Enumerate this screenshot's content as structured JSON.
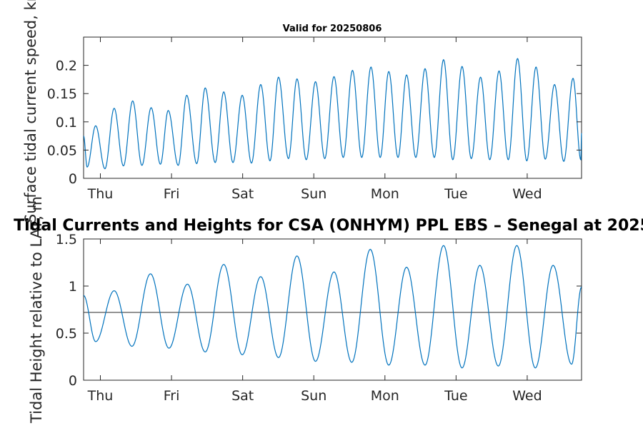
{
  "figure_title": "Tidal Currents and Heights for CSA (ONHYM) PPL EBS  – Senegal at 2025",
  "chart_data": [
    {
      "type": "line",
      "title": "Valid for 20250806",
      "xlabel": "",
      "ylabel": "Surface tidal current speed, kn",
      "x_ticks": [
        "Thu",
        "Fri",
        "Sat",
        "Sun",
        "Mon",
        "Tue",
        "Wed"
      ],
      "x_range_days": [
        0,
        7
      ],
      "ylim": [
        0,
        0.25
      ],
      "y_ticks": [
        "0",
        "0.05",
        "0.1",
        "0.15",
        "0.2"
      ],
      "series_color": "#0072BD",
      "peaks": [
        {
          "day": 0.17,
          "value": 0.093
        },
        {
          "day": 0.43,
          "value": 0.124
        },
        {
          "day": 0.69,
          "value": 0.137
        },
        {
          "day": 0.95,
          "value": 0.125
        },
        {
          "day": 1.19,
          "value": 0.12
        },
        {
          "day": 1.45,
          "value": 0.147
        },
        {
          "day": 1.71,
          "value": 0.16
        },
        {
          "day": 1.97,
          "value": 0.153
        },
        {
          "day": 2.23,
          "value": 0.147
        },
        {
          "day": 2.49,
          "value": 0.166
        },
        {
          "day": 2.74,
          "value": 0.179
        },
        {
          "day": 3.0,
          "value": 0.176
        },
        {
          "day": 3.26,
          "value": 0.171
        },
        {
          "day": 3.52,
          "value": 0.18
        },
        {
          "day": 3.78,
          "value": 0.191
        },
        {
          "day": 4.04,
          "value": 0.197
        },
        {
          "day": 4.29,
          "value": 0.189
        },
        {
          "day": 4.54,
          "value": 0.183
        },
        {
          "day": 4.8,
          "value": 0.194
        },
        {
          "day": 5.06,
          "value": 0.21
        },
        {
          "day": 5.32,
          "value": 0.198
        },
        {
          "day": 5.58,
          "value": 0.179
        },
        {
          "day": 5.84,
          "value": 0.19
        },
        {
          "day": 6.1,
          "value": 0.212
        },
        {
          "day": 6.36,
          "value": 0.197
        },
        {
          "day": 6.62,
          "value": 0.166
        },
        {
          "day": 6.88,
          "value": 0.177
        }
      ],
      "troughs": [
        {
          "day": 0.05,
          "value": 0.02
        },
        {
          "day": 0.3,
          "value": 0.017
        },
        {
          "day": 0.56,
          "value": 0.022
        },
        {
          "day": 0.82,
          "value": 0.023
        },
        {
          "day": 1.08,
          "value": 0.025
        },
        {
          "day": 1.33,
          "value": 0.023
        },
        {
          "day": 1.59,
          "value": 0.026
        },
        {
          "day": 1.85,
          "value": 0.028
        },
        {
          "day": 2.1,
          "value": 0.028
        },
        {
          "day": 2.36,
          "value": 0.027
        },
        {
          "day": 2.62,
          "value": 0.031
        },
        {
          "day": 2.88,
          "value": 0.035
        },
        {
          "day": 3.13,
          "value": 0.033
        },
        {
          "day": 3.39,
          "value": 0.035
        },
        {
          "day": 3.65,
          "value": 0.037
        },
        {
          "day": 3.91,
          "value": 0.037
        },
        {
          "day": 4.17,
          "value": 0.037
        },
        {
          "day": 4.42,
          "value": 0.037
        },
        {
          "day": 4.67,
          "value": 0.037
        },
        {
          "day": 4.93,
          "value": 0.037
        },
        {
          "day": 5.19,
          "value": 0.033
        },
        {
          "day": 5.45,
          "value": 0.035
        },
        {
          "day": 5.71,
          "value": 0.033
        },
        {
          "day": 5.97,
          "value": 0.033
        },
        {
          "day": 6.23,
          "value": 0.031
        },
        {
          "day": 6.49,
          "value": 0.034
        },
        {
          "day": 6.75,
          "value": 0.03
        },
        {
          "day": 6.99,
          "value": 0.033
        }
      ],
      "start_value": 0.075,
      "end_value": 0.08
    },
    {
      "type": "line",
      "title": "",
      "xlabel": "",
      "ylabel": "Tidal Height relative to LAT, m",
      "x_ticks": [
        "Thu",
        "Fri",
        "Sat",
        "Sun",
        "Mon",
        "Tue",
        "Wed"
      ],
      "x_range_days": [
        0,
        7
      ],
      "ylim": [
        0,
        1.5
      ],
      "y_ticks": [
        "0",
        "0.5",
        "1",
        "1.5"
      ],
      "series_color": "#0072BD",
      "reference_line": {
        "value": 0.72,
        "color": "#404040"
      },
      "extrema": [
        {
          "day": 0.0,
          "value": 0.9
        },
        {
          "day": 0.17,
          "value": 0.41
        },
        {
          "day": 0.43,
          "value": 0.95
        },
        {
          "day": 0.68,
          "value": 0.36
        },
        {
          "day": 0.94,
          "value": 1.13
        },
        {
          "day": 1.2,
          "value": 0.34
        },
        {
          "day": 1.46,
          "value": 1.02
        },
        {
          "day": 1.71,
          "value": 0.3
        },
        {
          "day": 1.97,
          "value": 1.23
        },
        {
          "day": 2.23,
          "value": 0.27
        },
        {
          "day": 2.49,
          "value": 1.1
        },
        {
          "day": 2.74,
          "value": 0.24
        },
        {
          "day": 3.0,
          "value": 1.32
        },
        {
          "day": 3.26,
          "value": 0.2
        },
        {
          "day": 3.52,
          "value": 1.15
        },
        {
          "day": 3.77,
          "value": 0.19
        },
        {
          "day": 4.03,
          "value": 1.39
        },
        {
          "day": 4.29,
          "value": 0.16
        },
        {
          "day": 4.54,
          "value": 1.2
        },
        {
          "day": 4.8,
          "value": 0.16
        },
        {
          "day": 5.06,
          "value": 1.43
        },
        {
          "day": 5.32,
          "value": 0.13
        },
        {
          "day": 5.57,
          "value": 1.22
        },
        {
          "day": 5.83,
          "value": 0.15
        },
        {
          "day": 6.09,
          "value": 1.43
        },
        {
          "day": 6.35,
          "value": 0.13
        },
        {
          "day": 6.6,
          "value": 1.22
        },
        {
          "day": 6.86,
          "value": 0.17
        },
        {
          "day": 7.0,
          "value": 0.99
        }
      ]
    }
  ]
}
